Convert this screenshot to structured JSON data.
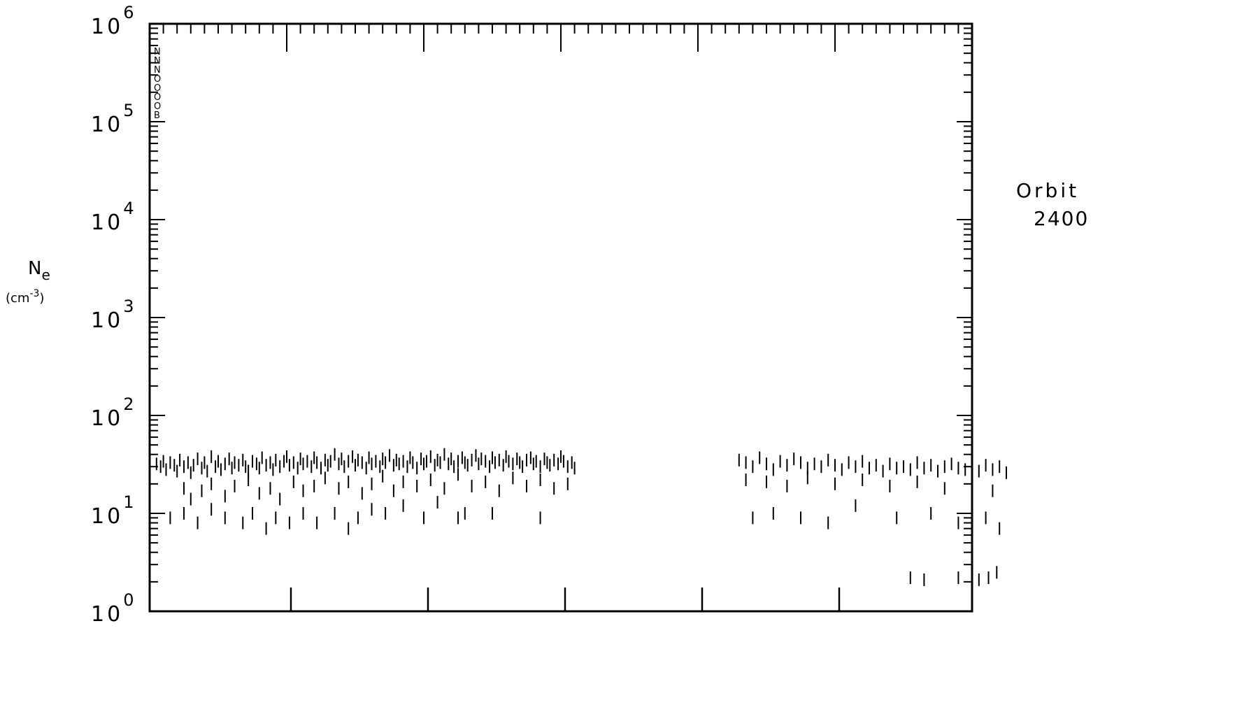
{
  "chart_data": {
    "type": "scatter",
    "marker": "vertical-bar",
    "title": "",
    "annotation": {
      "line1": "Orbit",
      "line2": "2400"
    },
    "ylabel": {
      "symbol": "N",
      "subscript": "e",
      "units_prefix": "(cm",
      "units_exp": "-3",
      "units_suffix": ")"
    },
    "yscale": "log",
    "ylim": [
      1,
      1000000
    ],
    "xlim": [
      0,
      6
    ],
    "y_ticks": [
      {
        "base": "10",
        "exp": "0"
      },
      {
        "base": "10",
        "exp": "1"
      },
      {
        "base": "10",
        "exp": "2"
      },
      {
        "base": "10",
        "exp": "3"
      },
      {
        "base": "10",
        "exp": "4"
      },
      {
        "base": "10",
        "exp": "5"
      },
      {
        "base": "10",
        "exp": "6"
      }
    ],
    "x_major_ticks": [
      1,
      2,
      3,
      4,
      5
    ],
    "x_minor_per_major": 10,
    "legend_glyphs": [
      "N",
      "N",
      "N",
      "O",
      "O",
      "O",
      "O",
      "B"
    ],
    "grid": false,
    "series": [
      {
        "values": [
          [
            0.05,
            32
          ],
          [
            0.08,
            30
          ],
          [
            0.1,
            34
          ],
          [
            0.12,
            28
          ],
          [
            0.15,
            33
          ],
          [
            0.18,
            31
          ],
          [
            0.2,
            27
          ],
          [
            0.22,
            35
          ],
          [
            0.25,
            30
          ],
          [
            0.28,
            33
          ],
          [
            0.3,
            26
          ],
          [
            0.32,
            31
          ],
          [
            0.35,
            36
          ],
          [
            0.38,
            29
          ],
          [
            0.4,
            33
          ],
          [
            0.42,
            27
          ],
          [
            0.45,
            38
          ],
          [
            0.48,
            30
          ],
          [
            0.5,
            34
          ],
          [
            0.52,
            28
          ],
          [
            0.55,
            32
          ],
          [
            0.58,
            36
          ],
          [
            0.6,
            29
          ],
          [
            0.62,
            33
          ],
          [
            0.65,
            31
          ],
          [
            0.68,
            35
          ],
          [
            0.7,
            30
          ],
          [
            0.72,
            27
          ],
          [
            0.75,
            34
          ],
          [
            0.78,
            32
          ],
          [
            0.8,
            29
          ],
          [
            0.82,
            37
          ],
          [
            0.85,
            31
          ],
          [
            0.88,
            33
          ],
          [
            0.9,
            28
          ],
          [
            0.92,
            35
          ],
          [
            0.95,
            30
          ],
          [
            0.98,
            34
          ],
          [
            1.0,
            38
          ],
          [
            1.02,
            31
          ],
          [
            1.05,
            33
          ],
          [
            1.08,
            29
          ],
          [
            1.1,
            36
          ],
          [
            1.12,
            32
          ],
          [
            1.15,
            34
          ],
          [
            1.18,
            30
          ],
          [
            1.2,
            37
          ],
          [
            1.22,
            33
          ],
          [
            1.25,
            29
          ],
          [
            1.28,
            35
          ],
          [
            1.3,
            31
          ],
          [
            1.32,
            34
          ],
          [
            1.35,
            40
          ],
          [
            1.38,
            32
          ],
          [
            1.4,
            36
          ],
          [
            1.42,
            30
          ],
          [
            1.45,
            34
          ],
          [
            1.48,
            38
          ],
          [
            1.5,
            31
          ],
          [
            1.52,
            35
          ],
          [
            1.55,
            33
          ],
          [
            1.58,
            29
          ],
          [
            1.6,
            37
          ],
          [
            1.62,
            32
          ],
          [
            1.65,
            34
          ],
          [
            1.68,
            30
          ],
          [
            1.7,
            36
          ],
          [
            1.72,
            33
          ],
          [
            1.75,
            39
          ],
          [
            1.78,
            31
          ],
          [
            1.8,
            35
          ],
          [
            1.82,
            32
          ],
          [
            1.85,
            34
          ],
          [
            1.88,
            30
          ],
          [
            1.9,
            37
          ],
          [
            1.92,
            33
          ],
          [
            1.95,
            29
          ],
          [
            1.98,
            36
          ],
          [
            2.0,
            32
          ],
          [
            2.02,
            34
          ],
          [
            2.05,
            38
          ],
          [
            2.08,
            31
          ],
          [
            2.1,
            35
          ],
          [
            2.12,
            33
          ],
          [
            2.15,
            40
          ],
          [
            2.18,
            32
          ],
          [
            2.2,
            36
          ],
          [
            2.22,
            30
          ],
          [
            2.25,
            34
          ],
          [
            2.28,
            37
          ],
          [
            2.3,
            33
          ],
          [
            2.32,
            31
          ],
          [
            2.35,
            35
          ],
          [
            2.38,
            39
          ],
          [
            2.4,
            32
          ],
          [
            2.42,
            36
          ],
          [
            2.45,
            34
          ],
          [
            2.48,
            30
          ],
          [
            2.5,
            37
          ],
          [
            2.52,
            33
          ],
          [
            2.55,
            35
          ],
          [
            2.58,
            31
          ],
          [
            2.6,
            38
          ],
          [
            2.62,
            34
          ],
          [
            2.65,
            32
          ],
          [
            2.68,
            36
          ],
          [
            2.7,
            33
          ],
          [
            2.72,
            30
          ],
          [
            2.75,
            35
          ],
          [
            2.78,
            37
          ],
          [
            2.8,
            32
          ],
          [
            2.82,
            34
          ],
          [
            2.85,
            30
          ],
          [
            2.88,
            36
          ],
          [
            2.9,
            33
          ],
          [
            2.92,
            31
          ],
          [
            2.95,
            35
          ],
          [
            2.98,
            32
          ],
          [
            3.0,
            38
          ],
          [
            3.02,
            34
          ],
          [
            3.05,
            30
          ],
          [
            3.08,
            33
          ],
          [
            3.1,
            29
          ],
          [
            0.25,
            18
          ],
          [
            0.3,
            14
          ],
          [
            0.38,
            17
          ],
          [
            0.45,
            20
          ],
          [
            0.55,
            15
          ],
          [
            0.62,
            19
          ],
          [
            0.72,
            22
          ],
          [
            0.8,
            16
          ],
          [
            0.88,
            18
          ],
          [
            0.95,
            14
          ],
          [
            1.05,
            21
          ],
          [
            1.12,
            17
          ],
          [
            1.2,
            19
          ],
          [
            1.28,
            23
          ],
          [
            1.38,
            18
          ],
          [
            1.45,
            21
          ],
          [
            1.55,
            16
          ],
          [
            1.62,
            20
          ],
          [
            1.7,
            24
          ],
          [
            1.78,
            17
          ],
          [
            1.85,
            21
          ],
          [
            1.95,
            19
          ],
          [
            2.05,
            22
          ],
          [
            2.15,
            18
          ],
          [
            2.25,
            25
          ],
          [
            2.35,
            19
          ],
          [
            2.45,
            21
          ],
          [
            2.55,
            17
          ],
          [
            2.65,
            23
          ],
          [
            2.75,
            19
          ],
          [
            2.85,
            22
          ],
          [
            2.95,
            18
          ],
          [
            3.05,
            20
          ],
          [
            0.15,
            9
          ],
          [
            0.25,
            10
          ],
          [
            0.35,
            8
          ],
          [
            0.45,
            11
          ],
          [
            0.55,
            9
          ],
          [
            0.68,
            8
          ],
          [
            0.75,
            10
          ],
          [
            0.85,
            7
          ],
          [
            0.92,
            9
          ],
          [
            1.02,
            8
          ],
          [
            1.12,
            10
          ],
          [
            1.22,
            8
          ],
          [
            1.35,
            10
          ],
          [
            1.45,
            7
          ],
          [
            1.52,
            9
          ],
          [
            1.62,
            11
          ],
          [
            1.72,
            10
          ],
          [
            1.85,
            12
          ],
          [
            2.0,
            9
          ],
          [
            2.1,
            13
          ],
          [
            2.25,
            9
          ],
          [
            2.3,
            10
          ],
          [
            2.5,
            10
          ],
          [
            2.85,
            9
          ],
          [
            4.3,
            35
          ],
          [
            4.35,
            33
          ],
          [
            4.4,
            30
          ],
          [
            4.45,
            37
          ],
          [
            4.5,
            32
          ],
          [
            4.55,
            28
          ],
          [
            4.6,
            34
          ],
          [
            4.65,
            31
          ],
          [
            4.7,
            36
          ],
          [
            4.75,
            33
          ],
          [
            4.8,
            29
          ],
          [
            4.85,
            32
          ],
          [
            4.9,
            30
          ],
          [
            4.95,
            35
          ],
          [
            5.0,
            31
          ],
          [
            5.05,
            28
          ],
          [
            5.1,
            33
          ],
          [
            5.15,
            30
          ],
          [
            5.2,
            34
          ],
          [
            5.25,
            29
          ],
          [
            5.3,
            31
          ],
          [
            5.35,
            27
          ],
          [
            5.4,
            32
          ],
          [
            5.45,
            29
          ],
          [
            5.5,
            30
          ],
          [
            5.55,
            28
          ],
          [
            5.6,
            33
          ],
          [
            5.65,
            29
          ],
          [
            5.7,
            31
          ],
          [
            5.75,
            27
          ],
          [
            5.8,
            30
          ],
          [
            5.85,
            32
          ],
          [
            5.9,
            29
          ],
          [
            5.95,
            28
          ],
          [
            6.0,
            30
          ],
          [
            6.05,
            27
          ],
          [
            6.1,
            31
          ],
          [
            6.15,
            28
          ],
          [
            6.2,
            30
          ],
          [
            6.25,
            26
          ],
          [
            4.35,
            22
          ],
          [
            4.5,
            21
          ],
          [
            4.65,
            19
          ],
          [
            4.8,
            23
          ],
          [
            5.0,
            20
          ],
          [
            5.2,
            22
          ],
          [
            5.4,
            19
          ],
          [
            5.6,
            21
          ],
          [
            5.8,
            18
          ],
          [
            6.0,
            20
          ],
          [
            6.15,
            17
          ],
          [
            4.4,
            9
          ],
          [
            4.55,
            10
          ],
          [
            4.75,
            9
          ],
          [
            4.95,
            8
          ],
          [
            5.15,
            12
          ],
          [
            5.45,
            9
          ],
          [
            5.7,
            10
          ],
          [
            5.9,
            8
          ],
          [
            6.1,
            9
          ],
          [
            6.2,
            7
          ],
          [
            5.55,
            2.2
          ],
          [
            5.65,
            2.1
          ],
          [
            5.9,
            2.2
          ],
          [
            6.05,
            2.1
          ],
          [
            6.12,
            2.2
          ],
          [
            6.18,
            2.5
          ]
        ]
      }
    ]
  }
}
